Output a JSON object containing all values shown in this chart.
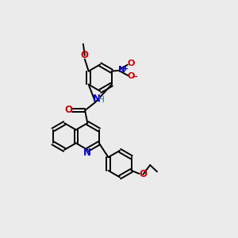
{
  "bg_color": "#ebebeb",
  "bond_color": "#000000",
  "N_color": "#0000cc",
  "O_color": "#cc0000",
  "H_color": "#008080",
  "lw": 1.4,
  "bl": 0.42,
  "xlim": [
    0,
    7
  ],
  "ylim": [
    0,
    7.5
  ]
}
